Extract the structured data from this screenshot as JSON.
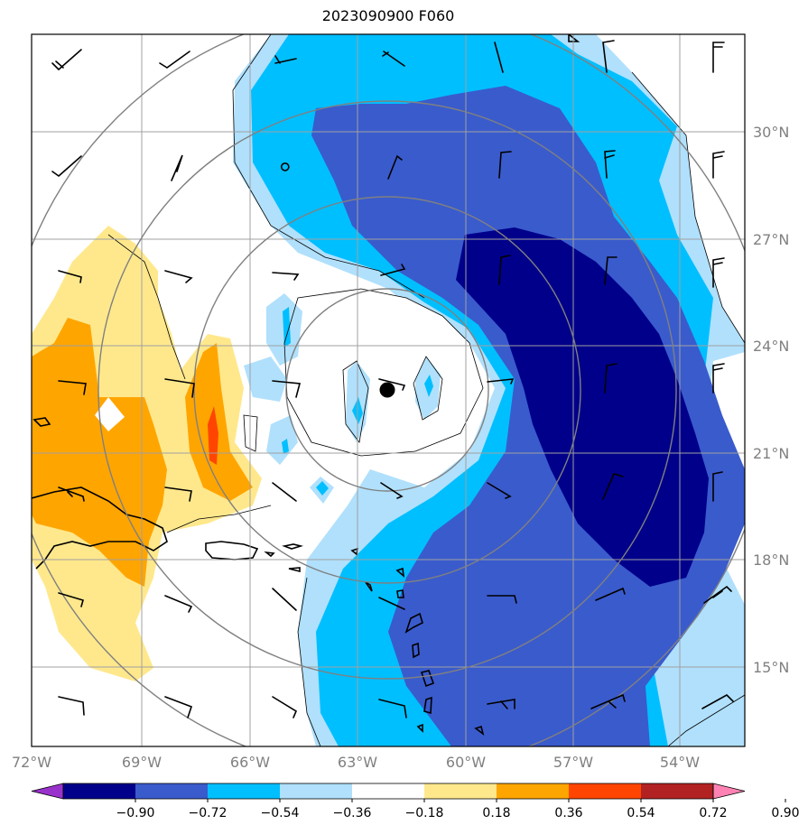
{
  "title": "2023090900 F060",
  "lon_labels": [
    "72°W",
    "69°W",
    "66°W",
    "63°W",
    "60°W",
    "57°W",
    "54°W"
  ],
  "lat_labels": [
    "30°N",
    "27°N",
    "24°N",
    "21°N",
    "18°N",
    "15°N"
  ],
  "colorbar": {
    "levels": [
      "−0.90",
      "−0.72",
      "−0.54",
      "−0.36",
      "−0.18",
      "0.18",
      "0.36",
      "0.54",
      "0.72",
      "0.90"
    ],
    "colors": [
      "#9932cc",
      "#00008b",
      "#3a5bcc",
      "#00bfff",
      "#b0e0fc",
      "#ffffff",
      "#ffe88c",
      "#ffa500",
      "#ff4500",
      "#b22222",
      "#ff82b4"
    ]
  },
  "palette": {
    "dark_navy": "#00008b",
    "royal_blue": "#3a5bcc",
    "deep_sky": "#00bfff",
    "light_blue": "#b0e0fc",
    "pale_yellow": "#ffe88c",
    "orange": "#ffa500",
    "red_orange": "#ff4500",
    "grid": "#a0a0a0",
    "range_rings": "#808080"
  }
}
